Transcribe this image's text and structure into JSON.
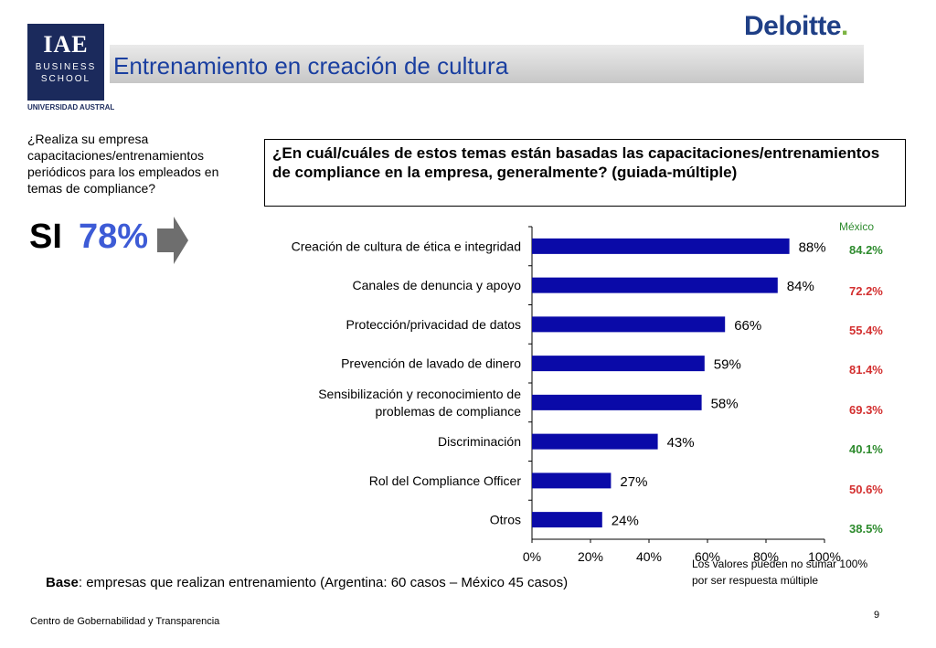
{
  "header": {
    "title": "Entrenamiento en creación de cultura",
    "logo_iae": "IAE",
    "logo_iae_business": "BUSINESS",
    "logo_iae_school": "SCHOOL",
    "logo_austral": "UNIVERSIDAD AUSTRAL",
    "logo_deloitte": "Deloitte",
    "logo_deloitte_dot": "."
  },
  "left_panel": {
    "question": "¿Realiza su empresa capacitaciones/entrenamientos periódicos para los empleados en temas de compliance?",
    "answer_label": "SI",
    "answer_value": "78%"
  },
  "question_box": "¿En cuál/cuáles de estos temas están basadas las capacitaciones/entrenamientos de compliance en la empresa, generalmente? (guiada-múltiple)",
  "mexico": {
    "header": "México",
    "values": [
      "84.2%",
      "72.2%",
      "55.4%",
      "81.4%",
      "69.3%",
      "40.1%",
      "50.6%",
      "38.5%"
    ],
    "colors": [
      "#2e8b2e",
      "#d32f2f",
      "#d32f2f",
      "#d32f2f",
      "#d32f2f",
      "#2e8b2e",
      "#d32f2f",
      "#2e8b2e"
    ]
  },
  "note": [
    "Los valores pueden no sumar 100%",
    "por ser respuesta múltiple"
  ],
  "base": {
    "bold": "Base",
    "text": ": empresas que realizan entrenamiento (Argentina: 60 casos – México 45 casos)"
  },
  "footer": "Centro de Gobernabilidad y Transparencia",
  "page_number": "9",
  "colors": {
    "bar": "#0a0aa8",
    "title": "#1a3fa0",
    "si_value": "#3d5bd6",
    "navy": "#1b2a5c"
  },
  "chart_data": {
    "type": "bar",
    "orientation": "horizontal",
    "categories": [
      "Creación de cultura de ética e integridad",
      "Canales de denuncia y apoyo",
      "Protección/privacidad de datos",
      "Prevención de lavado de dinero",
      "Sensibilización y reconocimiento de problemas de compliance",
      "Discriminación",
      "Rol del Compliance Officer",
      "Otros"
    ],
    "category_lines": [
      [
        "Creación de cultura de ética e integridad"
      ],
      [
        "Canales de denuncia y apoyo"
      ],
      [
        "Protección/privacidad de datos"
      ],
      [
        "Prevención de lavado de dinero"
      ],
      [
        "Sensibilización y reconocimiento de",
        "problemas de compliance"
      ],
      [
        "Discriminación"
      ],
      [
        "Rol del Compliance Officer"
      ],
      [
        "Otros"
      ]
    ],
    "values": [
      88,
      84,
      66,
      59,
      58,
      43,
      27,
      24
    ],
    "data_labels": [
      "88%",
      "84%",
      "66%",
      "59%",
      "58%",
      "43%",
      "27%",
      "24%"
    ],
    "xlim": [
      0,
      100
    ],
    "x_ticks": [
      0,
      20,
      40,
      60,
      80,
      100
    ],
    "x_tick_labels": [
      "0%",
      "20%",
      "40%",
      "60%",
      "80%",
      "100%"
    ],
    "grid": false,
    "legend": "none"
  }
}
